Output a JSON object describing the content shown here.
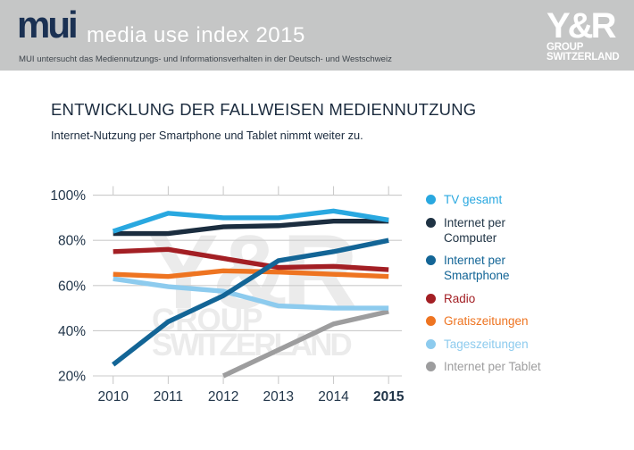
{
  "header": {
    "logo": "mui",
    "product_title": "media use index 2015",
    "description": "MUI untersucht das Mediennutzungs- und Informationsverhalten in der Deutsch- und Westschweiz",
    "brand": {
      "name": "Y&R",
      "line2": "GROUP",
      "line3": "SWITZERLAND"
    },
    "bg_color": "#C5C6C6",
    "logo_color": "#1B3153"
  },
  "content": {
    "title": "ENTWICKLUNG DER FALLWEISEN MEDIENNUTZUNG",
    "subtitle": "Internet-Nutzung per Smartphone und Tablet nimmt weiter zu."
  },
  "watermark": {
    "line1": "Y&R",
    "line2": "GROUP",
    "line3": "SWITZERLAND",
    "color": "#EBEBEB"
  },
  "chart_data": {
    "type": "line",
    "title": "Entwicklung der fallweisen Mediennutzung",
    "categories": [
      "2010",
      "2011",
      "2012",
      "2013",
      "2014",
      "2015"
    ],
    "bold_category": "2015",
    "xlabel": "",
    "ylabel": "",
    "ylim": [
      20,
      100
    ],
    "grid": true,
    "legend_position": "right",
    "y_ticks": [
      {
        "label": "100%",
        "value": 100
      },
      {
        "label": "80%",
        "value": 80
      },
      {
        "label": "60%",
        "value": 60
      },
      {
        "label": "40%",
        "value": 40
      },
      {
        "label": "20%",
        "value": 20
      }
    ],
    "series": [
      {
        "name": "TV gesamt",
        "color": "#29A8E0",
        "values": [
          84,
          92,
          90,
          90,
          93,
          89
        ]
      },
      {
        "name": "Internet per Computer",
        "color": "#1B2D3F",
        "values": [
          83,
          83,
          86,
          86.5,
          88.5,
          88.5
        ]
      },
      {
        "name": "Internet per Smartphone",
        "color": "#136596",
        "values": [
          25,
          44,
          55.5,
          71,
          75,
          80
        ]
      },
      {
        "name": "Radio",
        "color": "#A31F24",
        "values": [
          75,
          76,
          72,
          68,
          68.5,
          67
        ]
      },
      {
        "name": "Gratiszeitungen",
        "color": "#EE7421",
        "values": [
          65,
          64,
          66.5,
          66,
          65,
          64
        ]
      },
      {
        "name": "Tageszeitungen",
        "color": "#8DCBEE",
        "values": [
          63,
          59.5,
          57.5,
          51,
          50,
          50
        ]
      },
      {
        "name": "Internet per Tablet",
        "color": "#9D9D9E",
        "values": [
          null,
          null,
          20,
          31.5,
          43,
          48.5
        ]
      }
    ]
  },
  "legend": {
    "items": [
      {
        "label": "TV gesamt",
        "color": "#29A8E0"
      },
      {
        "label": "Internet per\nComputer",
        "color": "#1F3344"
      },
      {
        "label": "Internet per\nSmartphone",
        "color": "#136596"
      },
      {
        "label": "Radio",
        "color": "#A31F24"
      },
      {
        "label": "Gratiszeitungen",
        "color": "#EE7421"
      },
      {
        "label": "Tageszeitungen",
        "color": "#8DCBEE"
      },
      {
        "label": "Internet per Tablet",
        "color": "#9D9D9E"
      }
    ]
  }
}
